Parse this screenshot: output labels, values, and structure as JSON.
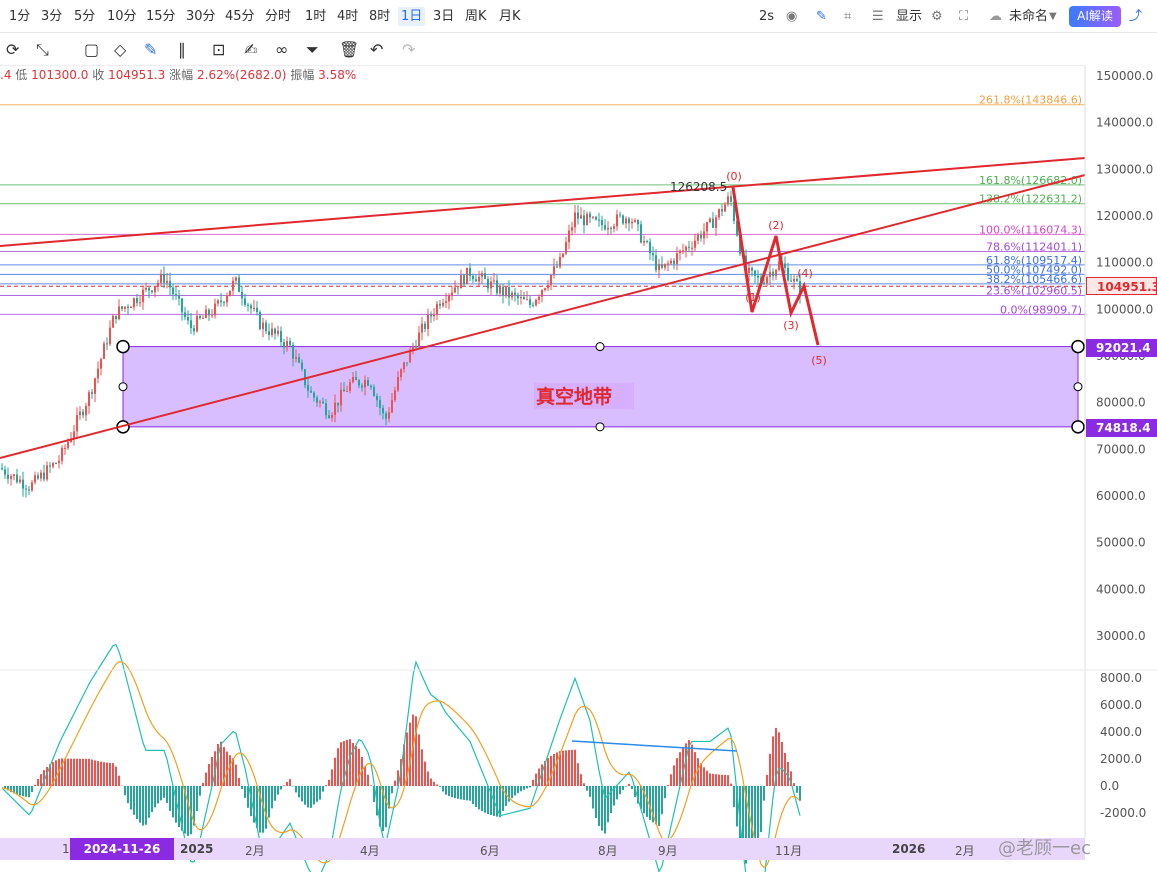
{
  "toolbar": {
    "timeframes": [
      "1分",
      "3分",
      "5分",
      "10分",
      "15分",
      "30分",
      "45分",
      "分时",
      "1时",
      "4时",
      "8时",
      "1日",
      "3日",
      "周K",
      "月K"
    ],
    "active_timeframe": "1日",
    "interval": "2s",
    "display_label": "显示",
    "chart_name": "未命名",
    "ai_label": "AI解读"
  },
  "ohlc_bar": {
    "open_tail": ".4",
    "low_label": "低",
    "low": "101300.0",
    "close_label": "收",
    "close": "104951.3",
    "change_label": "涨幅",
    "change": "2.62%(2682.0)",
    "amp_label": "振幅",
    "amp": "3.58%"
  },
  "chart_data": {
    "type": "candlestick",
    "price_axis": [
      "150000.0",
      "140000.0",
      "130000.0",
      "120000.0",
      "110000.0",
      "100000.0",
      "90000.0",
      "80000.0",
      "70000.0",
      "60000.0",
      "50000.0",
      "40000.0",
      "30000.0"
    ],
    "macd_axis": [
      "8000.0",
      "6000.0",
      "4000.0",
      "2000.0",
      "0.0",
      "-2000.0"
    ],
    "x_ticks": [
      "2025",
      "2月",
      "4月",
      "6月",
      "8月",
      "9月",
      "11月",
      "2026",
      "2月"
    ],
    "x_tick_first": "1",
    "crosshair_date": "2024-11-26 08:00",
    "last_price": "104951.3",
    "zone_top_tag": "92021.4",
    "zone_bottom_tag": "74818.4",
    "zone_label": "真空地带",
    "peak_label": "126208.5",
    "fib_levels": [
      {
        "label": "261.8%(143846.6)",
        "value": 143846.6,
        "color": "#f0a040"
      },
      {
        "label": "161.8%(126682.0)",
        "value": 126682.0,
        "color": "#4caf50"
      },
      {
        "label": "138.2%(122631.2)",
        "value": 122631.2,
        "color": "#4caf50"
      },
      {
        "label": "100.0%(116074.3)",
        "value": 116074.3,
        "color": "#d648c8"
      },
      {
        "label": "78.6%(112401.1)",
        "value": 112401.1,
        "color": "#a04ad8"
      },
      {
        "label": "61.8%(109517.4)",
        "value": 109517.4,
        "color": "#3c6fe0"
      },
      {
        "label": "50.0%(107492.0)",
        "value": 107492.0,
        "color": "#3c6fe0"
      },
      {
        "label": "38.2%(105466.6)",
        "value": 105466.6,
        "color": "#3c6fe0"
      },
      {
        "label": "23.6%(102960.5)",
        "value": 102960.5,
        "color": "#a04ad8"
      },
      {
        "label": "0.0%(98909.7)",
        "value": 98909.7,
        "color": "#a04ad8"
      }
    ],
    "wave_labels": [
      "(0)",
      "(1)",
      "(2)",
      "(3)",
      "(4)",
      "(5)"
    ],
    "colors": {
      "up": "#ef5350",
      "down": "#26a69a",
      "trend": "#e0282e",
      "zone": "#c8a2ff"
    }
  },
  "watermark": "@老顾一ec"
}
